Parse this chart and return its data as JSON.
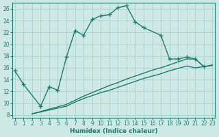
{
  "xlabel": "Humidex (Indice chaleur)",
  "bg_color": "#cde8e5",
  "grid_color": "#aacfcc",
  "line_color": "#1e7a72",
  "y_main_x": [
    0,
    1,
    3,
    4,
    5,
    6,
    7,
    8,
    9,
    10,
    11,
    12,
    13,
    14,
    15,
    17,
    18,
    19,
    20,
    21,
    22
  ],
  "y_main_y": [
    15.5,
    13.2,
    9.5,
    12.8,
    12.2,
    17.8,
    22.3,
    21.5,
    24.2,
    24.8,
    25.0,
    26.2,
    26.5,
    23.8,
    22.8,
    21.5,
    17.5,
    17.5,
    17.8,
    17.5,
    16.2
  ],
  "y_line1_x": [
    2,
    6,
    7,
    8,
    9,
    10,
    11,
    12,
    13,
    14,
    15,
    16,
    17,
    18,
    19,
    20,
    21,
    22,
    23
  ],
  "y_line1_y": [
    8.2,
    9.5,
    10.2,
    10.8,
    11.3,
    11.8,
    12.2,
    12.7,
    13.2,
    13.7,
    14.2,
    14.6,
    15.0,
    15.5,
    15.9,
    16.3,
    16.0,
    16.2,
    16.4
  ],
  "y_line2_x": [
    2,
    6,
    7,
    8,
    9,
    10,
    11,
    12,
    13,
    14,
    15,
    16,
    17,
    18,
    19,
    20,
    21,
    22,
    23
  ],
  "y_line2_y": [
    8.2,
    9.8,
    10.5,
    11.2,
    11.8,
    12.4,
    13.0,
    13.5,
    14.1,
    14.6,
    15.1,
    15.6,
    16.0,
    16.5,
    17.0,
    17.5,
    17.5,
    16.2,
    16.5
  ],
  "xlim": [
    -0.3,
    23.3
  ],
  "ylim": [
    7.5,
    27.0
  ],
  "yticks": [
    8,
    10,
    12,
    14,
    16,
    18,
    20,
    22,
    24,
    26
  ],
  "xticks": [
    0,
    1,
    2,
    3,
    4,
    5,
    6,
    7,
    8,
    9,
    10,
    11,
    12,
    13,
    14,
    15,
    16,
    17,
    18,
    19,
    20,
    21,
    22,
    23
  ]
}
